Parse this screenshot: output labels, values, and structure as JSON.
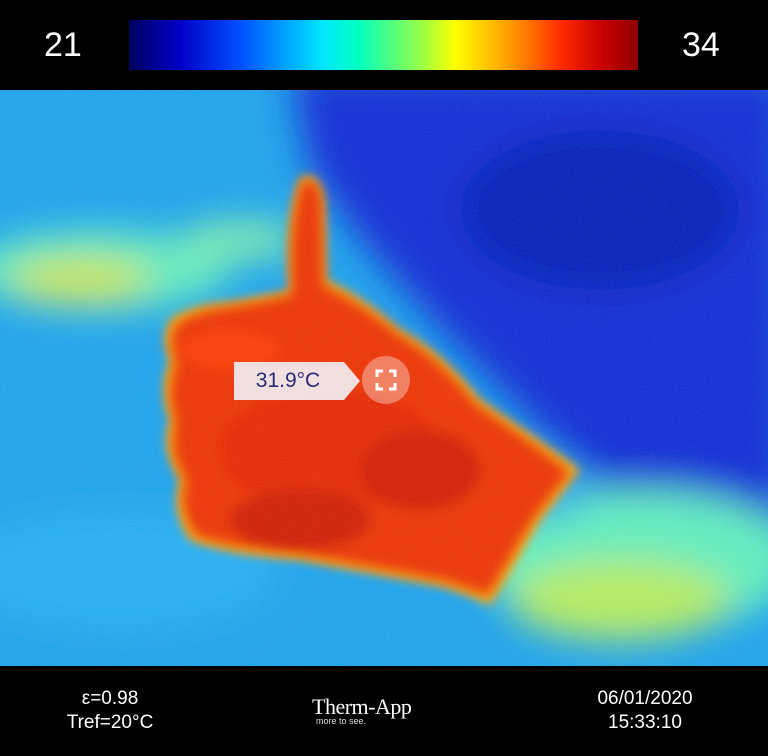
{
  "scale": {
    "min": "21",
    "max": "34"
  },
  "spot": {
    "temperature": "31.9°C"
  },
  "footer": {
    "emissivity": "ε=0.98",
    "tref": "Tref=20°C",
    "brand": "Therm-App",
    "tagline": "more to see.",
    "date": "06/01/2020",
    "time": "15:33:10"
  }
}
